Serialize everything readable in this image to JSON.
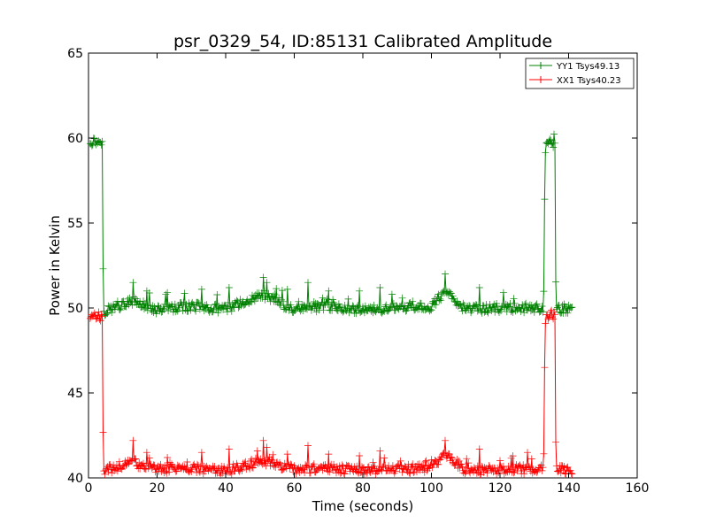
{
  "chart_data": {
    "type": "line",
    "title": "psr_0329_54, ID:85131 Calibrated Amplitude",
    "xlabel": "Time (seconds)",
    "ylabel": "Power in Kelvin",
    "xlim": [
      0,
      160
    ],
    "ylim": [
      40,
      65
    ],
    "xticks": [
      "0",
      "20",
      "40",
      "60",
      "80",
      "100",
      "120",
      "140",
      "160"
    ],
    "yticks": [
      "40",
      "45",
      "50",
      "55",
      "60",
      "65"
    ],
    "grid": false,
    "legend_position": "top-right",
    "marker": "+",
    "series": [
      {
        "name": "YY1 Tsys49.13",
        "color": "#008000",
        "points": [
          [
            0.5,
            59.8
          ],
          [
            4.1,
            59.8
          ],
          [
            4.3,
            49.8
          ],
          [
            13.0,
            50.4
          ],
          [
            20.0,
            49.9
          ],
          [
            30.0,
            50.1
          ],
          [
            40.0,
            49.9
          ],
          [
            50.5,
            50.8
          ],
          [
            60.0,
            49.9
          ],
          [
            70.0,
            50.1
          ],
          [
            80.0,
            49.9
          ],
          [
            90.0,
            50.0
          ],
          [
            100.0,
            50.1
          ],
          [
            104.0,
            51.0
          ],
          [
            110.0,
            49.9
          ],
          [
            120.0,
            50.0
          ],
          [
            130.0,
            50.0
          ],
          [
            132.7,
            49.9
          ],
          [
            133.0,
            56.4
          ],
          [
            133.3,
            59.7
          ],
          [
            136.0,
            59.7
          ],
          [
            136.3,
            49.9
          ],
          [
            141.0,
            49.9
          ]
        ],
        "spikes": [
          [
            13.0,
            51.5
          ],
          [
            17.0,
            51.0
          ],
          [
            23.0,
            50.9
          ],
          [
            33.0,
            51.1
          ],
          [
            41.0,
            51.2
          ],
          [
            51.0,
            51.8
          ],
          [
            52.0,
            51.5
          ],
          [
            58.0,
            51.1
          ],
          [
            64.0,
            51.5
          ],
          [
            70.0,
            51.0
          ],
          [
            79.0,
            51.0
          ],
          [
            85.0,
            51.2
          ],
          [
            104.0,
            52.0
          ],
          [
            114.0,
            51.2
          ],
          [
            121.0,
            50.9
          ]
        ]
      },
      {
        "name": "XX1 Tsys40.23",
        "color": "#ff0000",
        "points": [
          [
            0.5,
            49.5
          ],
          [
            4.1,
            49.5
          ],
          [
            4.3,
            40.4
          ],
          [
            13.0,
            40.9
          ],
          [
            20.0,
            40.5
          ],
          [
            30.0,
            40.6
          ],
          [
            40.0,
            40.4
          ],
          [
            50.5,
            41.0
          ],
          [
            60.0,
            40.5
          ],
          [
            70.0,
            40.6
          ],
          [
            80.0,
            40.4
          ],
          [
            90.0,
            40.5
          ],
          [
            100.0,
            40.6
          ],
          [
            104.0,
            41.5
          ],
          [
            110.0,
            40.4
          ],
          [
            120.0,
            40.5
          ],
          [
            130.0,
            40.5
          ],
          [
            132.7,
            40.4
          ],
          [
            133.0,
            46.5
          ],
          [
            133.3,
            49.6
          ],
          [
            136.0,
            49.6
          ],
          [
            136.3,
            40.6
          ],
          [
            141.0,
            40.4
          ]
        ],
        "spikes": [
          [
            13.0,
            42.2
          ],
          [
            17.0,
            41.5
          ],
          [
            23.0,
            41.2
          ],
          [
            33.0,
            41.5
          ],
          [
            41.0,
            41.7
          ],
          [
            51.0,
            42.2
          ],
          [
            52.0,
            41.8
          ],
          [
            58.0,
            41.4
          ],
          [
            64.0,
            41.9
          ],
          [
            70.0,
            41.4
          ],
          [
            79.0,
            41.3
          ],
          [
            85.0,
            41.6
          ],
          [
            104.0,
            42.2
          ],
          [
            114.0,
            41.7
          ],
          [
            128.0,
            41.5
          ]
        ]
      }
    ]
  }
}
